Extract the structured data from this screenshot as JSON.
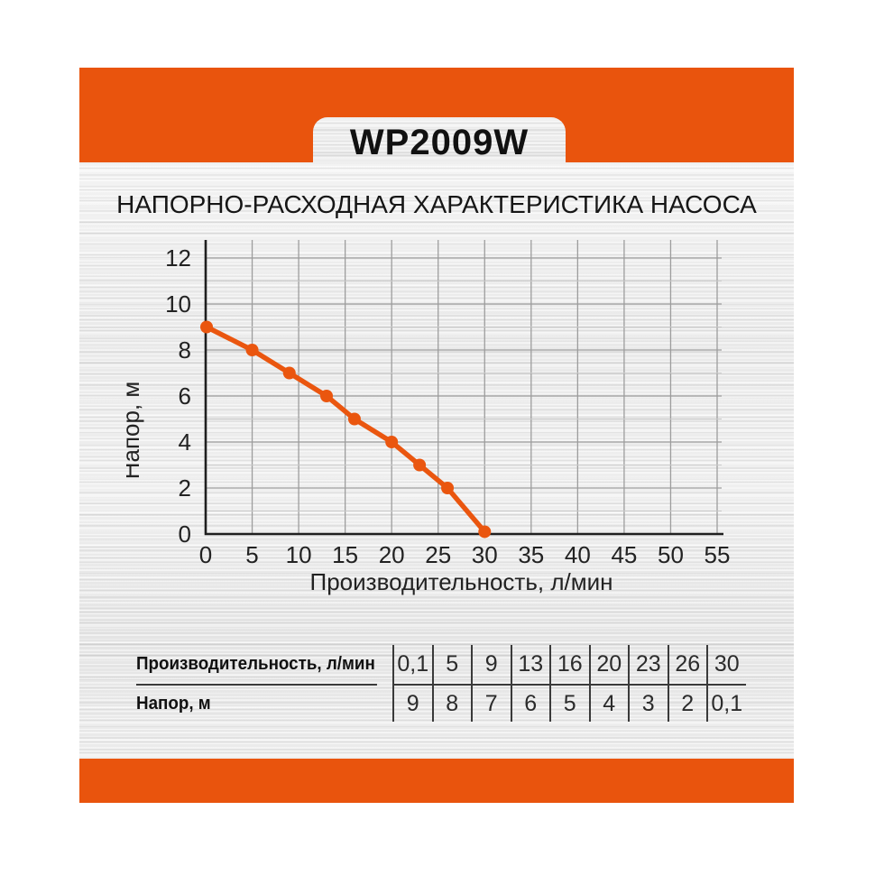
{
  "page": {
    "model": "WP2009W",
    "heading": "НАПОРНО-РАСХОДНАЯ ХАРАКТЕРИСТИКА НАСОСА"
  },
  "colors": {
    "accent_orange": "#e9540d",
    "curve_orange": "#ea560f",
    "axis": "#1f1f1f",
    "grid_major": "#9d9d9d",
    "grid_minor": "#c8c8c8",
    "tick_text": "#222222"
  },
  "chart_data": {
    "type": "line",
    "title": "",
    "xlabel": "Производительность, л/мин",
    "ylabel": "Напор, м",
    "x": [
      0.1,
      5,
      9,
      13,
      16,
      20,
      23,
      26,
      30
    ],
    "y": [
      9,
      8,
      7,
      6,
      5,
      4,
      3,
      2,
      0.1
    ],
    "xlim": [
      0,
      55
    ],
    "ylim": [
      0,
      12
    ],
    "x_ticks": [
      0,
      5,
      10,
      15,
      20,
      25,
      30,
      35,
      40,
      45,
      50,
      55
    ],
    "y_ticks": [
      0,
      2,
      4,
      6,
      8,
      10,
      12
    ],
    "y_minor_step": 1,
    "grid": "on",
    "legend": "none",
    "marker": "circle"
  },
  "table": {
    "rows": [
      {
        "label": "Производительность, л/мин",
        "values": [
          "0,1",
          "5",
          "9",
          "13",
          "16",
          "20",
          "23",
          "26",
          "30"
        ]
      },
      {
        "label": "Напор, м",
        "values": [
          "9",
          "8",
          "7",
          "6",
          "5",
          "4",
          "3",
          "2",
          "0,1"
        ]
      }
    ]
  }
}
